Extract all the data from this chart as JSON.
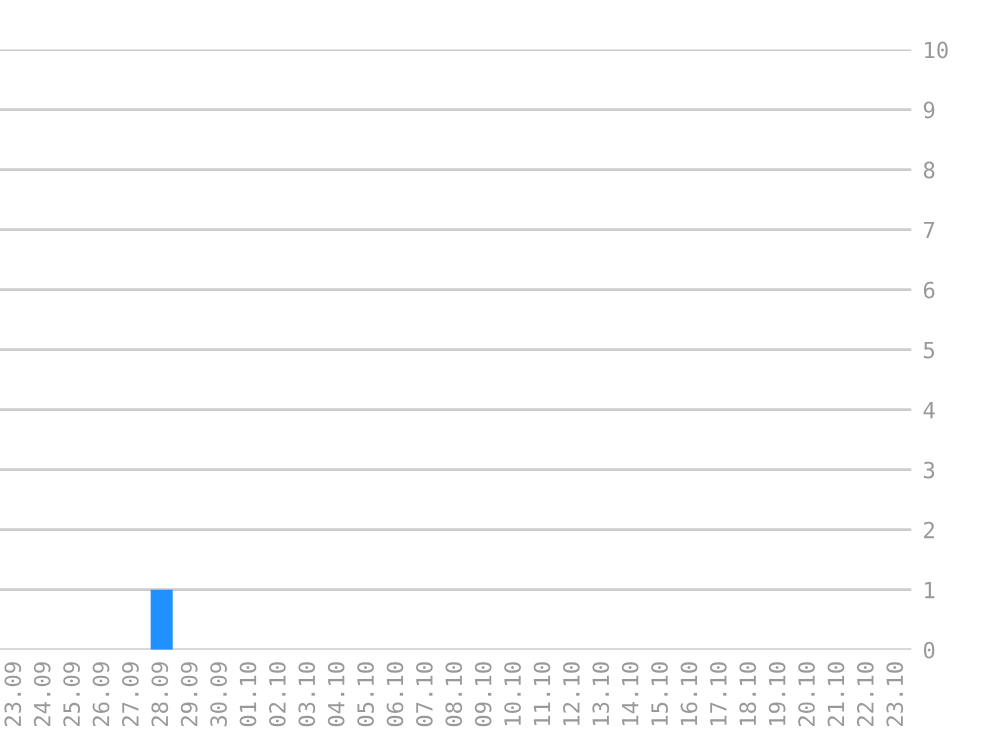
{
  "chart_data": {
    "type": "bar",
    "categories": [
      "23.09",
      "24.09",
      "25.09",
      "26.09",
      "27.09",
      "28.09",
      "29.09",
      "30.09",
      "01.10",
      "02.10",
      "03.10",
      "04.10",
      "05.10",
      "06.10",
      "07.10",
      "08.10",
      "09.10",
      "10.10",
      "11.10",
      "12.10",
      "13.10",
      "14.10",
      "15.10",
      "16.10",
      "17.10",
      "18.10",
      "19.10",
      "20.10",
      "21.10",
      "22.10",
      "23.10"
    ],
    "values": [
      0,
      0,
      0,
      0,
      0,
      1,
      0,
      0,
      0,
      0,
      0,
      0,
      0,
      0,
      0,
      0,
      0,
      0,
      0,
      0,
      0,
      0,
      0,
      0,
      0,
      0,
      0,
      0,
      0,
      0,
      0
    ],
    "color": "#1e90ff",
    "ylim": [
      0,
      10
    ],
    "yticks": [
      0,
      1,
      2,
      3,
      4,
      5,
      6,
      7,
      8,
      9,
      10
    ],
    "grid": "y"
  }
}
